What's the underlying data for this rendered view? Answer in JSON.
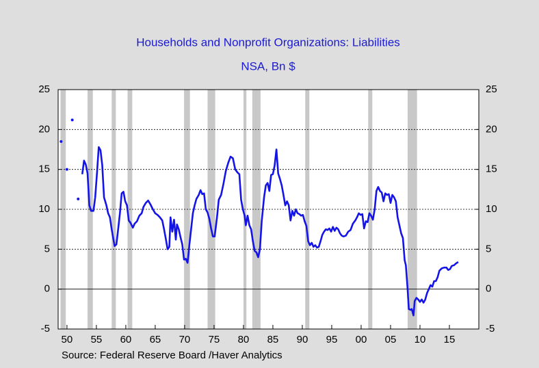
{
  "chart_data": {
    "type": "line",
    "title": "Households and Nonprofit Organizations: Liabilities",
    "subtitle": "NSA, Bn $",
    "source": "Source:  Federal Reserve Board /Haver Analytics",
    "xlim": [
      1948.5,
      2020
    ],
    "xticks": [
      {
        "value": 1950,
        "label": "50"
      },
      {
        "value": 1955,
        "label": "55"
      },
      {
        "value": 1960,
        "label": "60"
      },
      {
        "value": 1965,
        "label": "65"
      },
      {
        "value": 1970,
        "label": "70"
      },
      {
        "value": 1975,
        "label": "75"
      },
      {
        "value": 1980,
        "label": "80"
      },
      {
        "value": 1985,
        "label": "85"
      },
      {
        "value": 1990,
        "label": "90"
      },
      {
        "value": 1995,
        "label": "95"
      },
      {
        "value": 2000,
        "label": "00"
      },
      {
        "value": 2005,
        "label": "05"
      },
      {
        "value": 2010,
        "label": "10"
      },
      {
        "value": 2015,
        "label": "15"
      }
    ],
    "ylim": [
      -5,
      25
    ],
    "yticks": [
      -5,
      0,
      5,
      10,
      15,
      20,
      25
    ],
    "y2lim": [
      -5,
      25
    ],
    "y2ticks": [
      -5,
      0,
      5,
      10,
      15,
      20,
      25
    ],
    "grid": true,
    "shaded_periods": [
      [
        1948.9,
        1949.8
      ],
      [
        1953.5,
        1954.4
      ],
      [
        1957.6,
        1958.3
      ],
      [
        1960.3,
        1961.1
      ],
      [
        1969.9,
        1970.9
      ],
      [
        1973.9,
        1975.2
      ],
      [
        1980.0,
        1980.5
      ],
      [
        1981.5,
        1982.9
      ],
      [
        1990.5,
        1991.2
      ],
      [
        2001.2,
        2001.9
      ],
      [
        2007.9,
        2009.5
      ]
    ],
    "shade_color": "#c8c8c8",
    "x": [
      1949.0,
      1949.5,
      1950.0,
      1950.5,
      1950.9,
      1951.4,
      1951.9,
      1952.2,
      1952.6,
      1952.9,
      1953.2,
      1953.5,
      1953.8,
      1954.1,
      1954.5,
      1954.8,
      1955.1,
      1955.4,
      1955.7,
      1956.0,
      1956.3,
      1956.7,
      1957.0,
      1957.3,
      1957.6,
      1957.9,
      1958.1,
      1958.4,
      1958.7,
      1959.0,
      1959.3,
      1959.6,
      1959.9,
      1960.2,
      1960.5,
      1960.8,
      1961.2,
      1961.5,
      1961.9,
      1962.3,
      1962.7,
      1963.0,
      1963.4,
      1963.8,
      1964.2,
      1964.6,
      1965.0,
      1965.4,
      1965.8,
      1966.2,
      1966.5,
      1966.8,
      1967.1,
      1967.4,
      1967.6,
      1967.9,
      1968.2,
      1968.5,
      1968.7,
      1969.0,
      1969.3,
      1969.6,
      1969.9,
      1970.2,
      1970.5,
      1970.8,
      1971.1,
      1971.4,
      1971.7,
      1972.0,
      1972.4,
      1972.7,
      1973.0,
      1973.3,
      1973.6,
      1973.9,
      1974.2,
      1974.5,
      1974.8,
      1975.1,
      1975.5,
      1975.8,
      1976.2,
      1976.6,
      1977.0,
      1977.4,
      1977.8,
      1978.2,
      1978.6,
      1979.0,
      1979.3,
      1979.6,
      1979.9,
      1980.2,
      1980.4,
      1980.7,
      1981.0,
      1981.3,
      1981.6,
      1981.9,
      1982.2,
      1982.5,
      1982.8,
      1983.1,
      1983.5,
      1983.8,
      1984.1,
      1984.4,
      1984.7,
      1985.0,
      1985.3,
      1985.6,
      1985.9,
      1986.2,
      1986.5,
      1986.8,
      1987.1,
      1987.4,
      1987.7,
      1988.0,
      1988.3,
      1988.6,
      1988.9,
      1989.2,
      1989.5,
      1989.8,
      1990.1,
      1990.4,
      1990.7,
      1991.0,
      1991.3,
      1991.6,
      1991.9,
      1992.2,
      1992.5,
      1992.8,
      1993.1,
      1993.4,
      1993.7,
      1994.0,
      1994.3,
      1994.6,
      1994.9,
      1995.2,
      1995.5,
      1995.8,
      1996.1,
      1996.4,
      1996.7,
      1997.0,
      1997.4,
      1997.8,
      1998.2,
      1998.6,
      1999.0,
      1999.3,
      1999.6,
      1999.9,
      2000.2,
      2000.5,
      2000.8,
      2001.1,
      2001.4,
      2001.7,
      2002.0,
      2002.3,
      2002.6,
      2002.9,
      2003.2,
      2003.5,
      2003.8,
      2004.1,
      2004.4,
      2004.7,
      2005.0,
      2005.3,
      2005.6,
      2005.9,
      2006.2,
      2006.5,
      2006.8,
      2007.1,
      2007.4,
      2007.6,
      2007.9,
      2008.1,
      2008.4,
      2008.6,
      2008.9,
      2009.1,
      2009.4,
      2009.7,
      2010.0,
      2010.3,
      2010.6,
      2010.9,
      2011.2,
      2011.5,
      2011.8,
      2012.1,
      2012.4,
      2012.7,
      2013.0,
      2013.3,
      2013.7,
      2014.1,
      2014.5,
      2014.8,
      2015.1,
      2015.4,
      2015.8,
      2016.1,
      2016.5
    ],
    "series": [
      {
        "name": "Liabilities",
        "color": "#1414e6",
        "values": [
          18.5,
          null,
          15.0,
          null,
          21.2,
          null,
          11.3,
          null,
          14.4,
          16.1,
          15.6,
          14.5,
          10.5,
          9.8,
          9.8,
          11.5,
          14.5,
          17.8,
          17.4,
          15.5,
          11.5,
          10.5,
          9.5,
          9.0,
          7.5,
          6.2,
          5.4,
          5.6,
          7.5,
          9.5,
          12.0,
          12.2,
          11.0,
          10.5,
          8.6,
          8.3,
          7.7,
          8.2,
          8.5,
          9.2,
          9.5,
          10.3,
          10.8,
          11.1,
          10.6,
          10.0,
          9.5,
          9.3,
          9.0,
          8.6,
          7.5,
          6.3,
          5.0,
          5.3,
          9.0,
          7.2,
          8.7,
          6.2,
          8.1,
          7.5,
          6.5,
          5.6,
          3.7,
          3.8,
          3.3,
          5.5,
          7.5,
          9.5,
          10.5,
          11.3,
          11.8,
          12.4,
          11.9,
          12.0,
          10.0,
          9.6,
          8.8,
          7.6,
          6.6,
          6.6,
          9.0,
          11.2,
          11.8,
          13.2,
          14.8,
          15.8,
          16.6,
          16.4,
          15.0,
          14.6,
          14.4,
          11.2,
          10.0,
          9.2,
          8.0,
          9.2,
          8.0,
          7.5,
          6.0,
          4.8,
          4.6,
          4.0,
          5.0,
          8.5,
          11.5,
          13.0,
          13.3,
          12.3,
          14.3,
          14.4,
          15.5,
          17.5,
          14.5,
          13.8,
          13.0,
          11.8,
          10.5,
          11.0,
          10.5,
          8.6,
          9.8,
          9.2,
          10.0,
          9.5,
          9.4,
          9.2,
          9.3,
          8.5,
          7.9,
          6.0,
          5.5,
          5.8,
          5.3,
          5.5,
          5.2,
          5.3,
          6.0,
          6.8,
          7.2,
          7.5,
          7.4,
          7.6,
          7.2,
          7.8,
          7.3,
          7.7,
          7.5,
          7.0,
          6.7,
          6.6,
          6.7,
          7.2,
          7.4,
          8.2,
          8.6,
          9.0,
          9.5,
          9.3,
          9.4,
          7.6,
          8.5,
          8.4,
          9.5,
          9.2,
          8.7,
          10.0,
          12.3,
          12.8,
          12.3,
          12.1,
          11.0,
          12.0,
          11.8,
          11.9,
          10.8,
          11.8,
          11.5,
          11.0,
          9.0,
          8.0,
          7.0,
          6.4,
          3.6,
          3.0,
          0.0,
          -2.5,
          -2.6,
          -2.5,
          -3.3,
          -1.5,
          -1.1,
          -1.3,
          -1.6,
          -1.3,
          -1.7,
          -1.3,
          -0.5,
          0.0,
          0.5,
          0.3,
          1.0,
          1.0,
          1.5,
          2.3,
          2.6,
          2.7,
          2.7,
          2.4,
          2.5,
          2.9,
          3.0,
          3.2,
          3.4
        ]
      }
    ]
  }
}
